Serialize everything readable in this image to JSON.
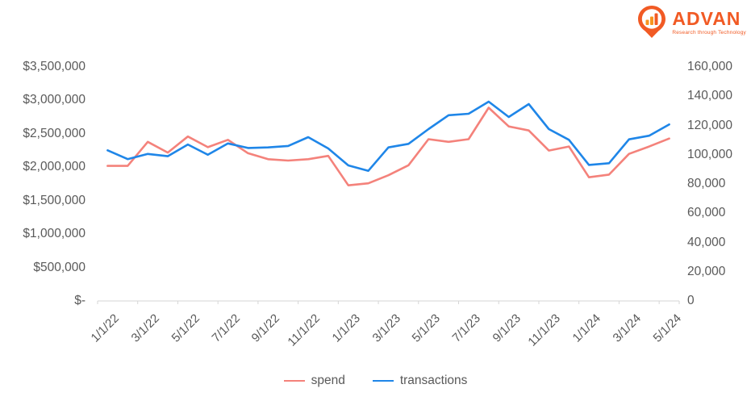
{
  "logo": {
    "name": "ADVAN",
    "tagline": "Research through Technology",
    "color": "#F15A24"
  },
  "colors": {
    "spend": "#F4827B",
    "transactions": "#1F86E8",
    "axis_text": "#595959",
    "axis_line": "#D6D6D6"
  },
  "chart_data": {
    "type": "line",
    "title": "",
    "grid": false,
    "legend_position": "bottom",
    "x": [
      "1/1/22",
      "2/1/22",
      "3/1/22",
      "4/1/22",
      "5/1/22",
      "6/1/22",
      "7/1/22",
      "8/1/22",
      "9/1/22",
      "10/1/22",
      "11/1/22",
      "12/1/22",
      "1/1/23",
      "2/1/23",
      "3/1/23",
      "4/1/23",
      "5/1/23",
      "6/1/23",
      "7/1/23",
      "8/1/23",
      "9/1/23",
      "10/1/23",
      "11/1/23",
      "12/1/23",
      "1/1/24",
      "2/1/24",
      "3/1/24",
      "4/1/24",
      "5/1/24"
    ],
    "x_tick_labels": [
      "1/1/22",
      "3/1/22",
      "5/1/22",
      "7/1/22",
      "9/1/22",
      "11/1/22",
      "1/1/23",
      "3/1/23",
      "5/1/23",
      "7/1/23",
      "9/1/23",
      "11/1/23",
      "1/1/24",
      "3/1/24",
      "5/1/24"
    ],
    "series": [
      {
        "name": "spend",
        "axis": "left",
        "color": "#F4827B",
        "values": [
          2020000,
          2020000,
          2380000,
          2220000,
          2460000,
          2300000,
          2410000,
          2210000,
          2120000,
          2100000,
          2120000,
          2170000,
          1730000,
          1760000,
          1880000,
          2030000,
          2420000,
          2380000,
          2420000,
          2890000,
          2610000,
          2550000,
          2250000,
          2310000,
          1850000,
          1890000,
          2200000,
          2310000,
          2430000
        ]
      },
      {
        "name": "transactions",
        "axis": "right",
        "color": "#1F86E8",
        "values": [
          103000,
          97000,
          100500,
          99000,
          107000,
          100000,
          107700,
          104600,
          105000,
          106000,
          112000,
          104300,
          92700,
          89000,
          105000,
          107400,
          117500,
          127000,
          128000,
          136300,
          125800,
          134600,
          117500,
          110200,
          93000,
          94200,
          110500,
          113000,
          120700
        ]
      }
    ],
    "left_axis": {
      "min": 0,
      "max": 3500000,
      "tick_labels": [
        "$3,500,000",
        "$3,000,000",
        "$2,500,000",
        "$2,000,000",
        "$1,500,000",
        "$1,000,000",
        "$500,000",
        "$-"
      ],
      "tick_values": [
        3500000,
        3000000,
        2500000,
        2000000,
        1500000,
        1000000,
        500000,
        0
      ]
    },
    "right_axis": {
      "min": 0,
      "max": 160000,
      "tick_labels": [
        "160,000",
        "140,000",
        "120,000",
        "100,000",
        "80,000",
        "60,000",
        "40,000",
        "20,000",
        "0"
      ],
      "tick_values": [
        160000,
        140000,
        120000,
        100000,
        80000,
        60000,
        40000,
        20000,
        0
      ]
    }
  }
}
